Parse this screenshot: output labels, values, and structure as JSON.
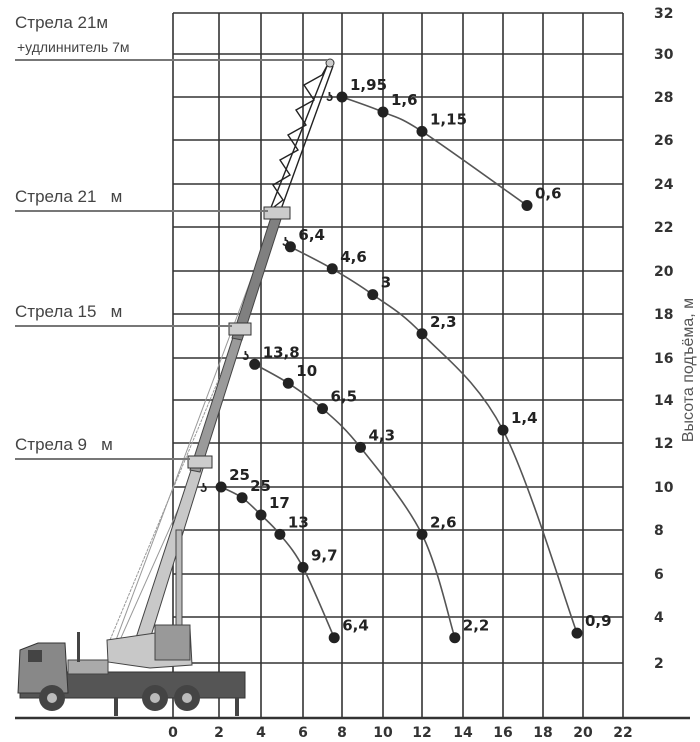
{
  "chart_data": {
    "type": "line",
    "title": "",
    "xlabel": "",
    "ylabel": "Высота подъёма, м",
    "xlim": [
      0,
      22
    ],
    "ylim": [
      0,
      32
    ],
    "x_ticks": [
      "0",
      "2",
      "4",
      "6",
      "8",
      "10",
      "12",
      "14",
      "16",
      "18",
      "20",
      "22"
    ],
    "y_ticks": [
      "2",
      "4",
      "6",
      "8",
      "10",
      "12",
      "14",
      "16",
      "18",
      "20",
      "22",
      "24",
      "26",
      "28",
      "30",
      "32"
    ],
    "grid": true,
    "boom_labels": [
      {
        "line1": "Стрела 21м",
        "line2": "+удлиннитель 7м"
      },
      {
        "line1": "Стрела 21   м"
      },
      {
        "line1": "Стрела 15   м"
      },
      {
        "line1": "Стрела 9   м"
      }
    ],
    "series": [
      {
        "boom": "Стрела 21м +удлиннитель 7м",
        "x": [
          8,
          10,
          12,
          17.2
        ],
        "y": [
          28,
          27.3,
          26.4,
          23
        ],
        "labels": [
          "1,95",
          "1,6",
          "1,15",
          "0,6"
        ]
      },
      {
        "boom": "Стрела 21 м",
        "x": [
          5.4,
          7.5,
          9.5,
          12,
          16,
          19.7
        ],
        "y": [
          21.1,
          20.1,
          18.9,
          17.1,
          12.6,
          3.3
        ],
        "labels": [
          "6,4",
          "4,6",
          "3",
          "2,3",
          "1,4",
          "0,9"
        ]
      },
      {
        "boom": "Стрела 15 м",
        "x": [
          3.7,
          5.3,
          7,
          8.9,
          12,
          13.6
        ],
        "y": [
          15.7,
          14.8,
          13.6,
          11.8,
          7.8,
          3.1
        ],
        "labels": [
          "13,8",
          "10",
          "6,5",
          "4,3",
          "2,6",
          "2,2"
        ]
      },
      {
        "boom": "Стрела 9 м",
        "x": [
          2.1,
          3.1,
          4,
          4.9,
          6,
          7.6
        ],
        "y": [
          10,
          9.5,
          8.7,
          7.8,
          6.3,
          3.1
        ],
        "labels": [
          "25",
          "25",
          "17",
          "13",
          "9,7",
          "6,4"
        ]
      }
    ],
    "colors": {
      "grid": "#333333",
      "curve": "#555555",
      "point": "#222222",
      "boom": "#8a8a8a"
    }
  }
}
